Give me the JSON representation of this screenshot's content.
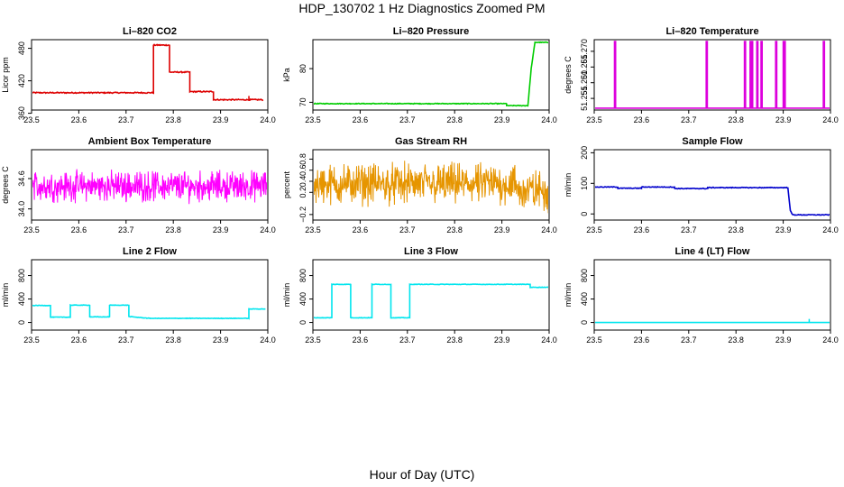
{
  "page": {
    "title": "HDP_130702  1 Hz Diagnostics Zoomed PM",
    "xlabel": "Hour of Day (UTC)"
  },
  "chart_data": [
    {
      "type": "line",
      "title": "Li–820 CO2",
      "ylabel": "Licor ppm",
      "xlim": [
        23.5,
        24.0
      ],
      "ylim": [
        366,
        496
      ],
      "xticks": [
        "23.5",
        "23.6",
        "23.7",
        "23.8",
        "23.9",
        "24.0"
      ],
      "yticks": [
        {
          "v": 360,
          "label": "360"
        },
        {
          "v": 420,
          "label": "420"
        },
        {
          "v": 480,
          "label": "480"
        }
      ],
      "color": "#dd0000",
      "noise": 1.0,
      "spikes": [
        {
          "x": 23.96,
          "y": 392
        },
        {
          "x": 23.962,
          "y": 383
        }
      ],
      "series": [
        {
          "x": [
            23.5,
            23.758,
            23.758,
            23.792,
            23.792,
            23.835,
            23.835,
            23.885,
            23.885,
            23.99
          ],
          "y": [
            398,
            398,
            486,
            486,
            436,
            436,
            400,
            400,
            385,
            385
          ]
        }
      ]
    },
    {
      "type": "line",
      "title": "Li–820 Pressure",
      "ylabel": "kPa",
      "xlim": [
        23.5,
        24.0
      ],
      "ylim": [
        67.7,
        88.6
      ],
      "xticks": [
        "23.5",
        "23.6",
        "23.7",
        "23.8",
        "23.9",
        "24.0"
      ],
      "yticks": [
        {
          "v": 70,
          "label": "70"
        },
        {
          "v": 80,
          "label": "80"
        }
      ],
      "color": "#00cc00",
      "noise": 0.1,
      "spikes": [],
      "series": [
        {
          "x": [
            23.5,
            23.91,
            23.91,
            23.955,
            23.962,
            23.97,
            24.0
          ],
          "y": [
            69.6,
            69.6,
            69.0,
            69.0,
            80,
            87.8,
            87.8
          ]
        }
      ]
    },
    {
      "type": "line",
      "title": "Li–820 Temperature",
      "ylabel": "degrees C",
      "xlim": [
        23.5,
        24.0
      ],
      "ylim": [
        51.2513,
        51.2737
      ],
      "xticks": [
        "23.5",
        "23.6",
        "23.7",
        "23.8",
        "23.9",
        "24.0"
      ],
      "yticks": [
        {
          "v": 51.255,
          "label": "51.255"
        },
        {
          "v": 51.26,
          "label": "51.260"
        },
        {
          "v": 51.265,
          "label": "51.265"
        },
        {
          "v": 51.27,
          "label": "51.270"
        }
      ],
      "color": "#dd00dd",
      "noise": 0,
      "base": 51.2519,
      "top": 51.2731,
      "pulses": [
        23.543,
        23.737,
        23.818,
        23.83,
        23.833,
        23.844,
        23.853,
        23.884,
        23.9,
        23.902,
        23.985
      ],
      "series": []
    },
    {
      "type": "line",
      "title": "Ambient Box Temperature",
      "ylabel": "degrees C",
      "xlim": [
        23.5,
        24.0
      ],
      "ylim": [
        33.78,
        35.17
      ],
      "xticks": [
        "23.5",
        "23.6",
        "23.7",
        "23.8",
        "23.9",
        "24.0"
      ],
      "yticks": [
        {
          "v": 34.0,
          "label": "34.0"
        },
        {
          "v": 34.6,
          "label": "34.6"
        }
      ],
      "color": "#ff00ff",
      "noise": 0.18,
      "mean": 34.45,
      "series": []
    },
    {
      "type": "line",
      "title": "Gas Stream RH",
      "ylabel": "percent",
      "xlim": [
        23.5,
        24.0
      ],
      "ylim": [
        -0.3,
        0.97
      ],
      "xticks": [
        "23.5",
        "23.6",
        "23.7",
        "23.8",
        "23.9",
        "24.0"
      ],
      "yticks": [
        {
          "v": -0.2,
          "label": "−0.2"
        },
        {
          "v": 0.2,
          "label": "0.2"
        },
        {
          "v": 0.4,
          "label": "0.4"
        },
        {
          "v": 0.6,
          "label": "0.6"
        },
        {
          "v": 0.8,
          "label": "0.8"
        }
      ],
      "color": "#e69500",
      "noise": 0.22,
      "mean": 0.35,
      "series": []
    },
    {
      "type": "line",
      "title": "Sample Flow",
      "ylabel": "ml/min",
      "xlim": [
        23.5,
        24.0
      ],
      "ylim": [
        -20,
        210
      ],
      "xticks": [
        "23.5",
        "23.6",
        "23.7",
        "23.8",
        "23.9",
        "24.0"
      ],
      "yticks": [
        {
          "v": 0,
          "label": "0"
        },
        {
          "v": 100,
          "label": "100"
        },
        {
          "v": 200,
          "label": "200"
        }
      ],
      "color": "#0000cc",
      "noise": 1.2,
      "spikes": [],
      "series": [
        {
          "x": [
            23.5,
            23.55,
            23.55,
            23.6,
            23.6,
            23.67,
            23.67,
            23.74,
            23.74,
            23.91,
            23.915,
            23.92,
            24.0
          ],
          "y": [
            88,
            88,
            84,
            84,
            88,
            88,
            83,
            83,
            86,
            86,
            10,
            -3,
            -3
          ]
        }
      ]
    },
    {
      "type": "line",
      "title": "Line 2 Flow",
      "ylabel": "ml/min",
      "xlim": [
        23.5,
        24.0
      ],
      "ylim": [
        -130,
        1070
      ],
      "xticks": [
        "23.5",
        "23.6",
        "23.7",
        "23.8",
        "23.9",
        "24.0"
      ],
      "yticks": [
        {
          "v": 0,
          "label": "0"
        },
        {
          "v": 400,
          "label": "400"
        },
        {
          "v": 800,
          "label": "800"
        }
      ],
      "color": "#00e5ee",
      "noise": 4,
      "spikes": [],
      "series": [
        {
          "x": [
            23.5,
            23.5,
            23.54,
            23.54,
            23.582,
            23.582,
            23.623,
            23.623,
            23.665,
            23.665,
            23.706,
            23.706,
            23.75,
            23.96,
            23.96,
            23.995
          ],
          "y": [
            100,
            290,
            290,
            90,
            90,
            295,
            295,
            95,
            95,
            295,
            295,
            100,
            70,
            70,
            230,
            230
          ]
        }
      ]
    },
    {
      "type": "line",
      "title": "Line 3 Flow",
      "ylabel": "ml/min",
      "xlim": [
        23.5,
        24.0
      ],
      "ylim": [
        -130,
        1070
      ],
      "xticks": [
        "23.5",
        "23.6",
        "23.7",
        "23.8",
        "23.9",
        "24.0"
      ],
      "yticks": [
        {
          "v": 0,
          "label": "0"
        },
        {
          "v": 400,
          "label": "400"
        },
        {
          "v": 800,
          "label": "800"
        }
      ],
      "color": "#00e5ee",
      "noise": 4,
      "spikes": [],
      "series": [
        {
          "x": [
            23.5,
            23.5,
            23.5,
            23.54,
            23.54,
            23.58,
            23.58,
            23.625,
            23.625,
            23.665,
            23.665,
            23.705,
            23.705,
            23.96,
            23.96,
            24.0
          ],
          "y": [
            640,
            80,
            80,
            80,
            650,
            650,
            80,
            80,
            650,
            650,
            80,
            80,
            650,
            650,
            600,
            600
          ]
        }
      ]
    },
    {
      "type": "line",
      "title": "Line 4 (LT) Flow",
      "ylabel": "ml/min",
      "xlim": [
        23.5,
        24.0
      ],
      "ylim": [
        -130,
        1070
      ],
      "xticks": [
        "23.5",
        "23.6",
        "23.7",
        "23.8",
        "23.9",
        "24.0"
      ],
      "yticks": [
        {
          "v": 0,
          "label": "0"
        },
        {
          "v": 400,
          "label": "400"
        },
        {
          "v": 800,
          "label": "800"
        }
      ],
      "color": "#00e5ee",
      "noise": 0,
      "spikes": [
        {
          "x": 23.955,
          "y": 60
        }
      ],
      "series": [
        {
          "x": [
            23.5,
            24.0
          ],
          "y": [
            0,
            0
          ]
        }
      ]
    }
  ]
}
